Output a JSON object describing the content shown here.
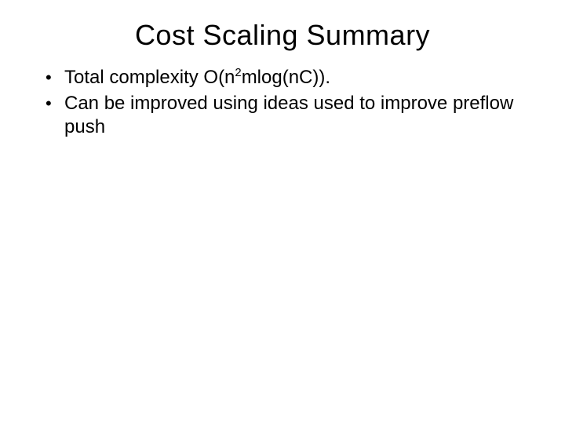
{
  "slide": {
    "title": "Cost Scaling Summary",
    "bullets": [
      {
        "pre": "Total complexity O(n",
        "sup": "2",
        "post": "mlog(nC))."
      },
      {
        "text": "Can be improved using ideas used to improve preflow push"
      }
    ]
  },
  "style": {
    "background_color": "#ffffff",
    "text_color": "#000000",
    "title_fontsize": 36,
    "body_fontsize": 24,
    "font_family": "Comic Sans MS"
  }
}
